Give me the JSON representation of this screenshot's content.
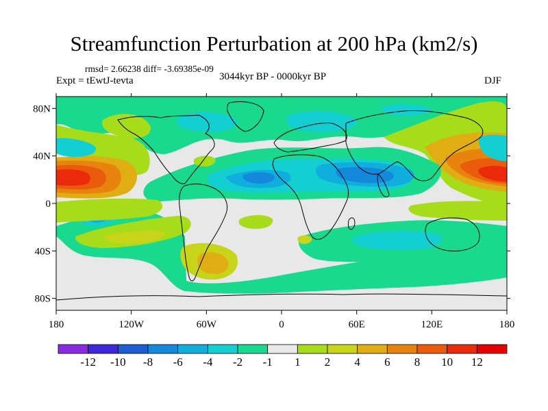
{
  "chart_data": {
    "type": "contour-map",
    "title": "Streamfunction Perturbation at 200 hPa (km2/s)",
    "stats_text": "rmsd= 2.66238 diff= -3.69385e-09",
    "experiment_text": "Expt = tEwtJ-tevta",
    "period_text": "3044kyr BP - 0000kyr BP",
    "season": "DJF",
    "lon_range": [
      -180,
      180
    ],
    "lat_range": [
      -90,
      90
    ],
    "x_ticks": [
      {
        "value": -180,
        "label": "180"
      },
      {
        "value": -120,
        "label": "120W"
      },
      {
        "value": -60,
        "label": "60W"
      },
      {
        "value": 0,
        "label": "0"
      },
      {
        "value": 60,
        "label": "60E"
      },
      {
        "value": 120,
        "label": "120E"
      },
      {
        "value": 180,
        "label": "180"
      }
    ],
    "y_ticks": [
      {
        "value": 80,
        "label": "80N"
      },
      {
        "value": 40,
        "label": "40N"
      },
      {
        "value": 0,
        "label": "0"
      },
      {
        "value": -40,
        "label": "40S"
      },
      {
        "value": -80,
        "label": "80S"
      }
    ],
    "colorbar": {
      "levels": [
        -12,
        -10,
        -8,
        -6,
        -4,
        -2,
        -1,
        1,
        2,
        4,
        6,
        8,
        10,
        12
      ],
      "labels": [
        "-12",
        "-10",
        "-8",
        "-6",
        "-4",
        "-2",
        "-1",
        "1",
        "2",
        "4",
        "6",
        "8",
        "10",
        "12"
      ],
      "colors": [
        "#8a2be2",
        "#3c28d8",
        "#1e5cd6",
        "#1488da",
        "#10aedc",
        "#14cfd2",
        "#18d98e",
        "#e8e8e8",
        "#a6dc1a",
        "#c8d41a",
        "#e0ae12",
        "#e8840e",
        "#ea5c0c",
        "#ea2a0a",
        "#e40000"
      ]
    },
    "features": [
      {
        "name": "central-pacific-high-west",
        "lon": -178,
        "lat": 20,
        "value": 11
      },
      {
        "name": "central-pacific-high-east",
        "lon": 178,
        "lat": 20,
        "value": 10
      },
      {
        "name": "north-pacific-low",
        "lon": -175,
        "lat": 45,
        "value": -4
      },
      {
        "name": "south-pacific-low",
        "lon": -145,
        "lat": -12,
        "value": -4
      },
      {
        "name": "tropical-atlantic-africa-low",
        "lon": -20,
        "lat": 20,
        "value": -5
      },
      {
        "name": "arabian-low",
        "lon": 55,
        "lat": 20,
        "value": -6
      },
      {
        "name": "north-atlantic-low",
        "lon": 20,
        "lat": 60,
        "value": -3
      },
      {
        "name": "north-america-low",
        "lon": -130,
        "lat": 62,
        "value": -3
      },
      {
        "name": "south-indian-low",
        "lon": 95,
        "lat": -30,
        "value": -3
      },
      {
        "name": "south-america-high",
        "lon": -55,
        "lat": -45,
        "value": 4
      },
      {
        "name": "south-pacific-high",
        "lon": -110,
        "lat": -35,
        "value": 2
      }
    ]
  }
}
